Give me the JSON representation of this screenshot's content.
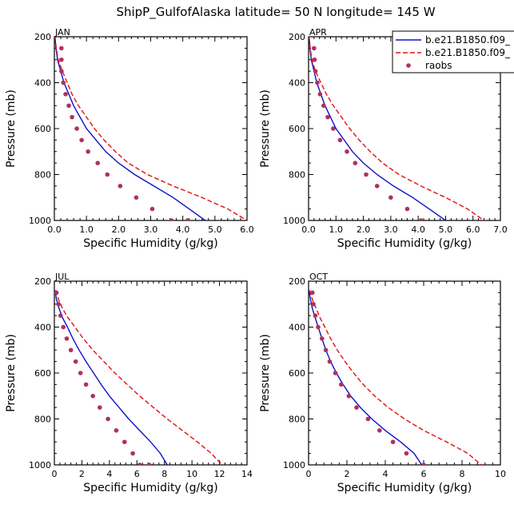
{
  "figure_title": "ShipP_GulfofAlaska  latitude= 50 N longitude= 145 W",
  "colors": {
    "model1": "#1010c8",
    "model2": "#e01010",
    "raobs": "#b03060"
  },
  "legend": {
    "placement": "top-right",
    "entries": [
      {
        "label": "b.e21.B1850.f09_",
        "style": "solid",
        "color": "#1010c8"
      },
      {
        "label": "b.e21.B1850.f09_",
        "style": "dashed",
        "color": "#e01010"
      },
      {
        "label": "raobs",
        "style": "markers",
        "color": "#b03060"
      }
    ]
  },
  "chart_data": [
    {
      "type": "line",
      "panel": "JAN",
      "xlabel": "Specific Humidity (g/kg)",
      "ylabel": "Pressure (mb)",
      "xlim": [
        0,
        6
      ],
      "ylim": [
        200,
        1000
      ],
      "y_inverted": true,
      "xticks": [
        "0.0",
        "1.0",
        "2.0",
        "3.0",
        "4.0",
        "5.0",
        "6.0"
      ],
      "yticks": [
        "200",
        "400",
        "600",
        "800",
        "1000"
      ],
      "series": [
        {
          "name": "b.e21.B1850.f09_",
          "style": "solid",
          "color": "#1010c8",
          "x": [
            0.02,
            0.05,
            0.1,
            0.2,
            0.3,
            0.45,
            0.6,
            0.8,
            1.0,
            1.3,
            1.6,
            2.0,
            2.5,
            3.1,
            3.7,
            4.2,
            4.7
          ],
          "y": [
            200,
            250,
            300,
            350,
            400,
            450,
            500,
            550,
            600,
            650,
            700,
            750,
            800,
            850,
            900,
            950,
            1000
          ]
        },
        {
          "name": "b.e21.B1850.f09_",
          "style": "dashed",
          "color": "#e01010",
          "x": [
            0.02,
            0.06,
            0.12,
            0.25,
            0.4,
            0.55,
            0.75,
            1.0,
            1.25,
            1.55,
            1.9,
            2.3,
            2.9,
            3.7,
            4.6,
            5.4,
            6.0
          ],
          "y": [
            200,
            250,
            300,
            350,
            400,
            450,
            500,
            550,
            600,
            650,
            700,
            750,
            800,
            850,
            900,
            950,
            1000
          ]
        },
        {
          "name": "raobs",
          "style": "markers",
          "color": "#b03060",
          "x": [
            0.22,
            0.22,
            0.22,
            0.28,
            0.35,
            0.45,
            0.55,
            0.7,
            0.85,
            1.05,
            1.35,
            1.65,
            2.05,
            2.55,
            3.05,
            3.65,
            4.15
          ],
          "y": [
            250,
            300,
            350,
            400,
            450,
            500,
            550,
            600,
            650,
            700,
            750,
            800,
            850,
            900,
            950,
            1000,
            1000
          ]
        }
      ]
    },
    {
      "type": "line",
      "panel": "APR",
      "xlabel": "Specific Humidity (g/kg)",
      "ylabel": "Pressure (mb)",
      "xlim": [
        0,
        7
      ],
      "ylim": [
        200,
        1000
      ],
      "y_inverted": true,
      "xticks": [
        "0.0",
        "1.0",
        "2.0",
        "3.0",
        "4.0",
        "5.0",
        "6.0",
        "7.0"
      ],
      "yticks": [
        "200",
        "400",
        "600",
        "800",
        "1000"
      ],
      "series": [
        {
          "name": "b.e21.B1850.f09_",
          "style": "solid",
          "color": "#1010c8",
          "x": [
            0.02,
            0.05,
            0.1,
            0.2,
            0.3,
            0.45,
            0.6,
            0.8,
            1.0,
            1.3,
            1.6,
            2.0,
            2.5,
            3.1,
            3.8,
            4.4,
            5.0
          ],
          "y": [
            200,
            250,
            300,
            350,
            400,
            450,
            500,
            550,
            600,
            650,
            700,
            750,
            800,
            850,
            900,
            950,
            1000
          ]
        },
        {
          "name": "b.e21.B1850.f09_",
          "style": "dashed",
          "color": "#e01010",
          "x": [
            0.02,
            0.06,
            0.12,
            0.25,
            0.45,
            0.65,
            0.9,
            1.2,
            1.5,
            1.85,
            2.25,
            2.7,
            3.3,
            4.1,
            5.0,
            5.8,
            6.4
          ],
          "y": [
            200,
            250,
            300,
            350,
            400,
            450,
            500,
            550,
            600,
            650,
            700,
            750,
            800,
            850,
            900,
            950,
            1000
          ]
        },
        {
          "name": "raobs",
          "style": "markers",
          "color": "#b03060",
          "x": [
            0.2,
            0.22,
            0.25,
            0.32,
            0.42,
            0.55,
            0.7,
            0.9,
            1.15,
            1.4,
            1.7,
            2.1,
            2.5,
            3.0,
            3.6,
            4.1
          ],
          "y": [
            250,
            300,
            350,
            400,
            450,
            500,
            550,
            600,
            650,
            700,
            750,
            800,
            850,
            900,
            950,
            1000
          ]
        }
      ]
    },
    {
      "type": "line",
      "panel": "JUL",
      "xlabel": "Specific Humidity (g/kg)",
      "ylabel": "Pressure (mb)",
      "xlim": [
        0,
        14
      ],
      "ylim": [
        200,
        1000
      ],
      "y_inverted": true,
      "xticks": [
        "0",
        "2",
        "4",
        "6",
        "8",
        "10",
        "12",
        "14"
      ],
      "yticks": [
        "200",
        "400",
        "600",
        "800",
        "1000"
      ],
      "series": [
        {
          "name": "b.e21.B1850.f09_",
          "style": "solid",
          "color": "#1010c8",
          "x": [
            0.05,
            0.15,
            0.35,
            0.6,
            0.95,
            1.35,
            1.8,
            2.3,
            2.85,
            3.4,
            4.0,
            4.7,
            5.4,
            6.2,
            7.0,
            7.7,
            8.2
          ],
          "y": [
            240,
            280,
            320,
            360,
            400,
            450,
            500,
            550,
            600,
            650,
            700,
            750,
            800,
            850,
            900,
            950,
            1000
          ]
        },
        {
          "name": "b.e21.B1850.f09_",
          "style": "dashed",
          "color": "#e01010",
          "x": [
            0.1,
            0.3,
            0.6,
            1.0,
            1.5,
            2.1,
            2.8,
            3.6,
            4.4,
            5.3,
            6.2,
            7.2,
            8.2,
            9.3,
            10.4,
            11.4,
            12.2
          ],
          "y": [
            240,
            280,
            320,
            360,
            400,
            450,
            500,
            550,
            600,
            650,
            700,
            750,
            800,
            850,
            900,
            950,
            1000
          ]
        },
        {
          "name": "raobs",
          "style": "markers",
          "color": "#b03060",
          "x": [
            0.15,
            0.3,
            0.45,
            0.65,
            0.9,
            1.2,
            1.55,
            1.9,
            2.3,
            2.8,
            3.3,
            3.9,
            4.5,
            5.1,
            5.7,
            6.2,
            6.9
          ],
          "y": [
            250,
            300,
            350,
            400,
            450,
            500,
            550,
            600,
            650,
            700,
            750,
            800,
            850,
            900,
            950,
            1000,
            1000
          ]
        }
      ]
    },
    {
      "type": "line",
      "panel": "OCT",
      "xlabel": "Specific Humidity (g/kg)",
      "ylabel": "Pressure (mb)",
      "xlim": [
        0,
        10
      ],
      "ylim": [
        200,
        1000
      ],
      "y_inverted": true,
      "xticks": [
        "0",
        "2",
        "4",
        "6",
        "8",
        "10"
      ],
      "yticks": [
        "200",
        "400",
        "600",
        "800",
        "1000"
      ],
      "series": [
        {
          "name": "b.e21.B1850.f09_",
          "style": "solid",
          "color": "#1010c8",
          "x": [
            0.02,
            0.1,
            0.2,
            0.35,
            0.5,
            0.7,
            0.9,
            1.15,
            1.45,
            1.8,
            2.2,
            2.7,
            3.3,
            4.0,
            4.8,
            5.5,
            5.9
          ],
          "y": [
            240,
            280,
            320,
            360,
            400,
            450,
            500,
            550,
            600,
            650,
            700,
            750,
            800,
            850,
            900,
            950,
            1000
          ]
        },
        {
          "name": "b.e21.B1850.f09_",
          "style": "dashed",
          "color": "#e01010",
          "x": [
            0.05,
            0.2,
            0.4,
            0.6,
            0.85,
            1.15,
            1.5,
            1.9,
            2.35,
            2.85,
            3.45,
            4.15,
            5.0,
            6.0,
            7.2,
            8.3,
            9.0
          ],
          "y": [
            240,
            280,
            320,
            360,
            400,
            450,
            500,
            550,
            600,
            650,
            700,
            750,
            800,
            850,
            900,
            950,
            1000
          ]
        },
        {
          "name": "raobs",
          "style": "markers",
          "color": "#b03060",
          "x": [
            0.2,
            0.25,
            0.35,
            0.5,
            0.7,
            0.9,
            1.1,
            1.4,
            1.7,
            2.1,
            2.5,
            3.1,
            3.7,
            4.4,
            5.1,
            6.0
          ],
          "y": [
            250,
            300,
            350,
            400,
            450,
            500,
            550,
            600,
            650,
            700,
            750,
            800,
            850,
            900,
            950,
            1000
          ]
        }
      ]
    }
  ]
}
